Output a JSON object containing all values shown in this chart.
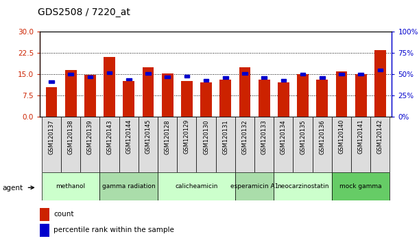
{
  "title": "GDS2508 / 7220_at",
  "categories": [
    "GSM120137",
    "GSM120138",
    "GSM120139",
    "GSM120143",
    "GSM120144",
    "GSM120145",
    "GSM120128",
    "GSM120129",
    "GSM120130",
    "GSM120131",
    "GSM120132",
    "GSM120133",
    "GSM120134",
    "GSM120135",
    "GSM120136",
    "GSM120140",
    "GSM120141",
    "GSM120142"
  ],
  "count_values": [
    10.5,
    16.5,
    14.8,
    21.0,
    12.5,
    17.5,
    15.2,
    12.5,
    12.0,
    13.0,
    17.5,
    13.0,
    12.0,
    15.0,
    13.0,
    16.0,
    15.0,
    23.5
  ],
  "percentile_values": [
    41,
    50,
    47,
    52,
    44,
    51,
    47,
    48,
    43,
    46,
    51,
    46,
    43,
    50,
    46,
    50,
    50,
    55
  ],
  "ylim_left": [
    0,
    30
  ],
  "ylim_right": [
    0,
    100
  ],
  "yticks_left": [
    0,
    7.5,
    15,
    22.5,
    30
  ],
  "yticks_right": [
    0,
    25,
    50,
    75,
    100
  ],
  "bar_color": "#cc2200",
  "percentile_color": "#0000cc",
  "agent_groups": [
    {
      "label": "methanol",
      "start": 0,
      "end": 2,
      "color": "#ccffcc"
    },
    {
      "label": "gamma radiation",
      "start": 3,
      "end": 5,
      "color": "#aaddaa"
    },
    {
      "label": "calicheamicin",
      "start": 6,
      "end": 9,
      "color": "#ccffcc"
    },
    {
      "label": "esperamicin A1",
      "start": 10,
      "end": 11,
      "color": "#aaddaa"
    },
    {
      "label": "neocarzinostatin",
      "start": 12,
      "end": 14,
      "color": "#ccffcc"
    },
    {
      "label": "mock gamma",
      "start": 15,
      "end": 17,
      "color": "#66cc66"
    }
  ],
  "legend_count_label": "count",
  "legend_percentile_label": "percentile rank within the sample",
  "agent_label": "agent"
}
